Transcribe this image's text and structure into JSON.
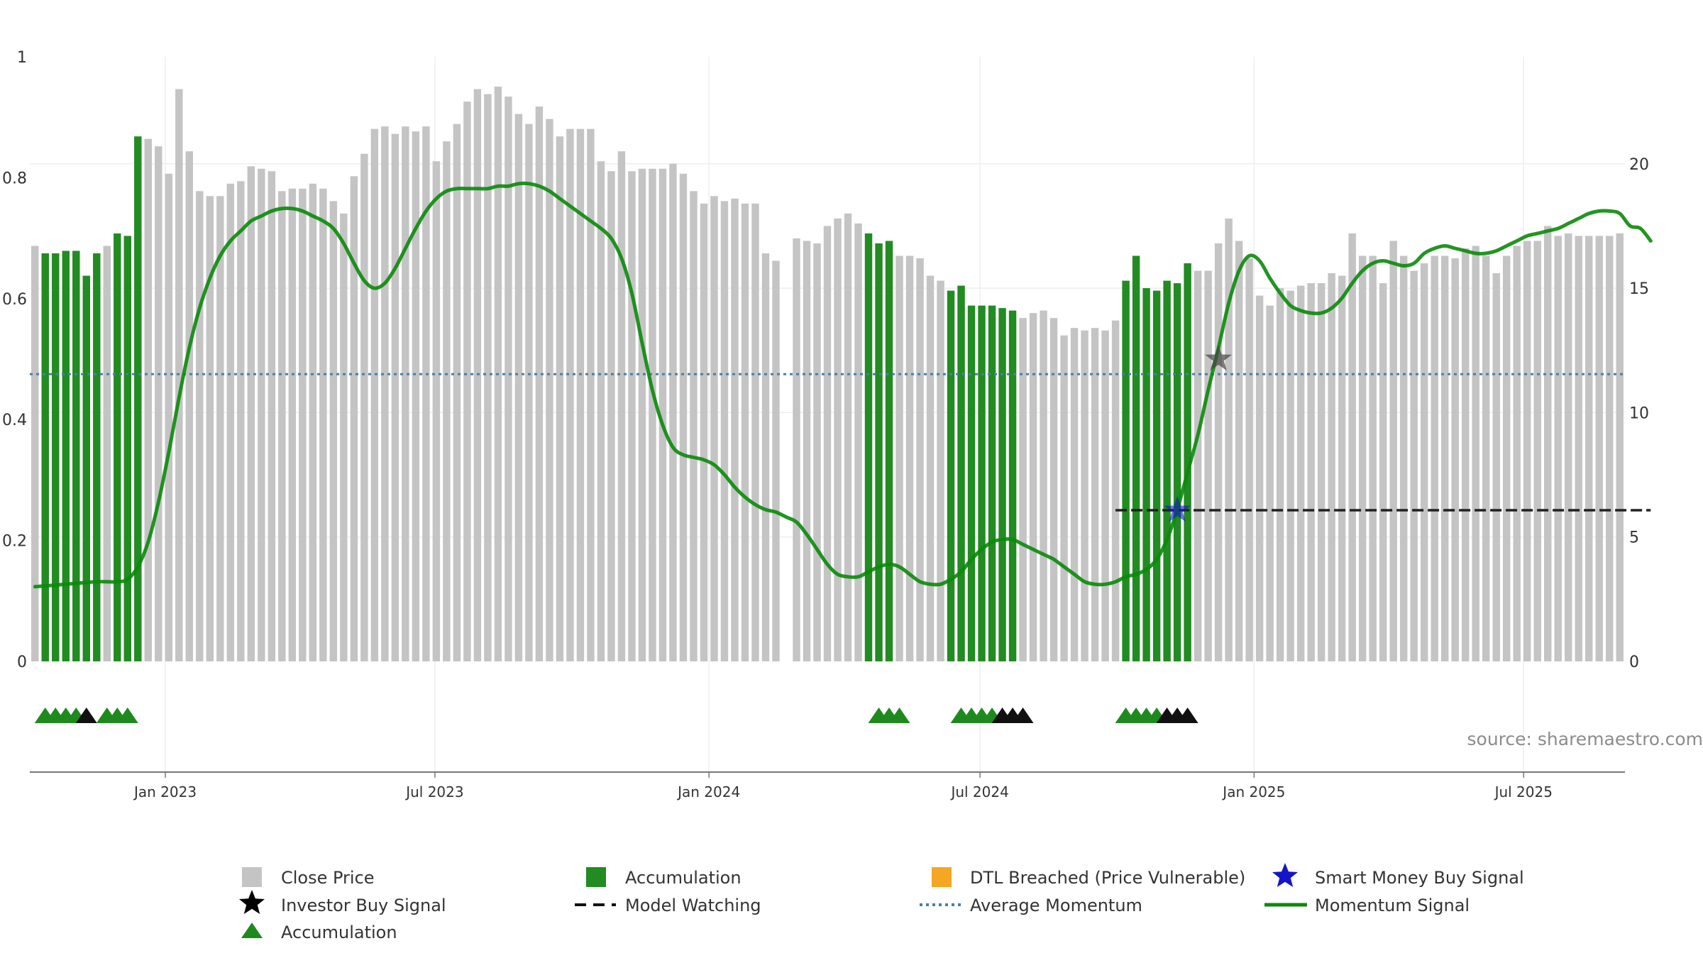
{
  "chart_data": {
    "type": "bar",
    "title": "",
    "source": "source: sharemaestro.com",
    "left_axis": {
      "range": [
        0,
        1
      ],
      "ticks": [
        0,
        0.2,
        0.4,
        0.6,
        0.8,
        1
      ],
      "tick_labels": [
        "0",
        "0.2",
        "0.4",
        "0.6",
        "0.8",
        "1"
      ]
    },
    "right_axis": {
      "range": [
        0,
        24.3
      ],
      "ticks": [
        0,
        5,
        10,
        15,
        20
      ],
      "tick_labels": [
        "0",
        "5",
        "10",
        "15",
        "20"
      ]
    },
    "x_axis": {
      "start": "2022-10-02",
      "end": "2025-09-07",
      "ticks": [
        "2023-01-01",
        "2023-07-01",
        "2024-01-01",
        "2024-07-01",
        "2025-01-01",
        "2025-07-01"
      ],
      "tick_labels": [
        "Jan 2023",
        "Jul 2023",
        "Jan 2024",
        "Jul 2024",
        "Jan 2025",
        "Jul 2025"
      ]
    },
    "colors": {
      "close": "#c4c4c4",
      "accumulation": "#228b22",
      "momentum": "#0a8a0a",
      "average": "#4a7fa8",
      "model": "#222222",
      "triangle_green": "#1e8a1e",
      "triangle_black": "#111111",
      "smart_money": "#1515c8",
      "investor": "#444444",
      "dtl": "#f5a623"
    },
    "close_price": [
      16.7,
      16.4,
      16.4,
      16.5,
      16.5,
      15.5,
      16.4,
      16.7,
      17.2,
      17.1,
      21.1,
      21.0,
      20.7,
      19.6,
      23.0,
      20.5,
      18.9,
      18.7,
      18.7,
      19.2,
      19.3,
      19.9,
      19.8,
      19.7,
      18.9,
      19.0,
      19.0,
      19.2,
      19.0,
      18.5,
      18.0,
      19.5,
      20.4,
      21.4,
      21.5,
      21.2,
      21.5,
      21.3,
      21.5,
      20.1,
      20.9,
      21.6,
      22.5,
      23.0,
      22.8,
      23.1,
      22.7,
      22.0,
      21.6,
      22.3,
      21.8,
      21.1,
      21.4,
      21.4,
      21.4,
      20.1,
      19.7,
      20.5,
      19.7,
      19.8,
      19.8,
      19.8,
      20.0,
      19.6,
      18.9,
      18.4,
      18.7,
      18.5,
      18.6,
      18.4,
      18.4,
      16.4,
      16.1,
      null,
      17.0,
      16.9,
      16.8,
      17.5,
      17.8,
      18.0,
      17.6,
      17.2,
      16.8,
      16.9,
      16.3,
      16.3,
      16.2,
      15.5,
      15.3,
      14.9,
      15.1,
      14.3,
      14.3,
      14.3,
      14.2,
      14.1,
      13.8,
      14.0,
      14.1,
      13.8,
      13.1,
      13.4,
      13.3,
      13.4,
      13.3,
      13.7,
      15.3,
      16.3,
      15.0,
      14.9,
      15.3,
      15.2,
      16.0,
      15.7,
      15.7,
      16.8,
      17.8,
      16.9,
      16.2,
      14.7,
      14.3,
      15.0,
      14.9,
      15.1,
      15.2,
      15.2,
      15.6,
      15.5,
      17.2,
      16.3,
      16.3,
      15.2,
      16.9,
      16.3,
      15.7,
      16.0,
      16.3,
      16.3,
      16.2,
      16.6,
      16.7,
      16.3,
      15.6,
      16.3,
      16.7,
      16.9,
      16.9,
      17.5,
      17.1,
      17.2,
      17.1,
      17.1,
      17.1,
      17.1,
      17.2
    ],
    "accumulation_weeks": [
      1,
      2,
      3,
      4,
      5,
      6,
      8,
      9,
      10,
      81,
      82,
      83,
      89,
      90,
      91,
      92,
      93,
      94,
      95,
      106,
      107,
      108,
      109,
      110,
      111,
      112
    ],
    "momentum": [
      [
        0,
        3.0
      ],
      [
        3,
        3.1
      ],
      [
        6,
        3.2
      ],
      [
        8,
        3.2
      ],
      [
        9,
        3.3
      ],
      [
        10,
        3.8
      ],
      [
        11,
        4.8
      ],
      [
        12,
        6.4
      ],
      [
        13,
        8.4
      ],
      [
        14,
        10.6
      ],
      [
        15,
        12.6
      ],
      [
        16,
        14.2
      ],
      [
        17,
        15.4
      ],
      [
        18,
        16.3
      ],
      [
        19,
        16.9
      ],
      [
        20,
        17.3
      ],
      [
        21,
        17.7
      ],
      [
        22,
        17.9
      ],
      [
        23,
        18.1
      ],
      [
        24,
        18.2
      ],
      [
        25,
        18.2
      ],
      [
        26,
        18.1
      ],
      [
        27,
        17.9
      ],
      [
        28,
        17.7
      ],
      [
        29,
        17.4
      ],
      [
        30,
        16.8
      ],
      [
        31,
        16.0
      ],
      [
        32,
        15.3
      ],
      [
        33,
        15.0
      ],
      [
        34,
        15.2
      ],
      [
        35,
        15.8
      ],
      [
        36,
        16.6
      ],
      [
        37,
        17.4
      ],
      [
        38,
        18.1
      ],
      [
        39,
        18.6
      ],
      [
        40,
        18.9
      ],
      [
        41,
        19.0
      ],
      [
        42,
        19.0
      ],
      [
        43,
        19.0
      ],
      [
        44,
        19.0
      ],
      [
        45,
        19.1
      ],
      [
        46,
        19.1
      ],
      [
        47,
        19.2
      ],
      [
        48,
        19.2
      ],
      [
        49,
        19.1
      ],
      [
        50,
        18.9
      ],
      [
        51,
        18.6
      ],
      [
        52,
        18.3
      ],
      [
        53,
        18.0
      ],
      [
        54,
        17.7
      ],
      [
        55,
        17.4
      ],
      [
        56,
        17.0
      ],
      [
        57,
        16.2
      ],
      [
        58,
        14.8
      ],
      [
        59,
        12.8
      ],
      [
        60,
        10.9
      ],
      [
        61,
        9.5
      ],
      [
        62,
        8.6
      ],
      [
        63,
        8.3
      ],
      [
        64,
        8.2
      ],
      [
        65,
        8.1
      ],
      [
        66,
        7.9
      ],
      [
        67,
        7.5
      ],
      [
        68,
        7.0
      ],
      [
        69,
        6.6
      ],
      [
        70,
        6.3
      ],
      [
        71,
        6.1
      ],
      [
        72,
        6.0
      ],
      [
        73,
        5.8
      ],
      [
        74,
        5.6
      ],
      [
        75,
        5.1
      ],
      [
        76,
        4.5
      ],
      [
        77,
        3.9
      ],
      [
        78,
        3.5
      ],
      [
        79,
        3.4
      ],
      [
        80,
        3.4
      ],
      [
        81,
        3.6
      ],
      [
        82,
        3.8
      ],
      [
        83,
        3.9
      ],
      [
        84,
        3.8
      ],
      [
        85,
        3.5
      ],
      [
        86,
        3.2
      ],
      [
        87,
        3.1
      ],
      [
        88,
        3.1
      ],
      [
        89,
        3.3
      ],
      [
        90,
        3.6
      ],
      [
        91,
        4.1
      ],
      [
        92,
        4.5
      ],
      [
        93,
        4.8
      ],
      [
        94,
        4.9
      ],
      [
        95,
        4.9
      ],
      [
        96,
        4.7
      ],
      [
        97,
        4.5
      ],
      [
        98,
        4.3
      ],
      [
        99,
        4.1
      ],
      [
        100,
        3.8
      ],
      [
        101,
        3.5
      ],
      [
        102,
        3.2
      ],
      [
        103,
        3.1
      ],
      [
        104,
        3.1
      ],
      [
        105,
        3.2
      ],
      [
        106,
        3.4
      ],
      [
        107,
        3.5
      ],
      [
        108,
        3.7
      ],
      [
        109,
        4.1
      ],
      [
        110,
        4.9
      ],
      [
        111,
        6.1
      ],
      [
        112,
        7.6
      ],
      [
        113,
        9.1
      ],
      [
        114,
        10.9
      ],
      [
        115,
        12.6
      ],
      [
        116,
        14.4
      ],
      [
        117,
        15.7
      ],
      [
        118,
        16.3
      ],
      [
        119,
        16.1
      ],
      [
        120,
        15.4
      ],
      [
        121,
        14.8
      ],
      [
        122,
        14.3
      ],
      [
        123,
        14.1
      ],
      [
        124,
        14.0
      ],
      [
        125,
        14.0
      ],
      [
        126,
        14.2
      ],
      [
        127,
        14.6
      ],
      [
        128,
        15.2
      ],
      [
        129,
        15.7
      ],
      [
        130,
        16.0
      ],
      [
        131,
        16.1
      ],
      [
        132,
        16.0
      ],
      [
        133,
        15.9
      ],
      [
        134,
        16.0
      ],
      [
        135,
        16.4
      ],
      [
        136,
        16.6
      ],
      [
        137,
        16.7
      ],
      [
        138,
        16.6
      ],
      [
        139,
        16.5
      ],
      [
        140,
        16.4
      ],
      [
        141,
        16.4
      ],
      [
        142,
        16.5
      ],
      [
        143,
        16.7
      ],
      [
        144,
        16.9
      ],
      [
        145,
        17.1
      ],
      [
        146,
        17.2
      ],
      [
        147,
        17.3
      ],
      [
        148,
        17.4
      ],
      [
        149,
        17.6
      ],
      [
        150,
        17.8
      ],
      [
        151,
        18.0
      ],
      [
        152,
        18.1
      ],
      [
        153,
        18.1
      ],
      [
        154,
        18.0
      ],
      [
        155,
        17.5
      ],
      [
        156,
        17.4
      ],
      [
        157,
        16.9
      ]
    ],
    "average_momentum": 0.475,
    "model_watching": {
      "from_week": 105,
      "to_week": 157,
      "value": 0.25
    },
    "smart_money_buy": [
      {
        "week": 111,
        "value": 0.25
      }
    ],
    "investor_buy": [
      {
        "week": 115,
        "value": 0.5
      }
    ],
    "triangles": [
      [
        1,
        "g"
      ],
      [
        2,
        "g"
      ],
      [
        3,
        "g"
      ],
      [
        4,
        "g"
      ],
      [
        5,
        "k"
      ],
      [
        7,
        "g"
      ],
      [
        8,
        "g"
      ],
      [
        9,
        "g"
      ],
      [
        82,
        "g"
      ],
      [
        83,
        "g"
      ],
      [
        84,
        "g"
      ],
      [
        90,
        "g"
      ],
      [
        91,
        "g"
      ],
      [
        92,
        "g"
      ],
      [
        93,
        "g"
      ],
      [
        94,
        "k"
      ],
      [
        95,
        "k"
      ],
      [
        96,
        "k"
      ],
      [
        106,
        "g"
      ],
      [
        107,
        "g"
      ],
      [
        108,
        "g"
      ],
      [
        109,
        "g"
      ],
      [
        110,
        "k"
      ],
      [
        111,
        "k"
      ],
      [
        112,
        "k"
      ]
    ]
  },
  "legend": {
    "close_price": "Close Price",
    "accumulation_bar": "Accumulation",
    "dtl": "DTL Breached (Price Vulnerable)",
    "smart_money": "Smart Money Buy Signal",
    "investor": "Investor Buy Signal",
    "model_watching": "Model Watching",
    "average_momentum": "Average Momentum",
    "momentum": "Momentum Signal",
    "accumulation_triangle": "Accumulation"
  }
}
